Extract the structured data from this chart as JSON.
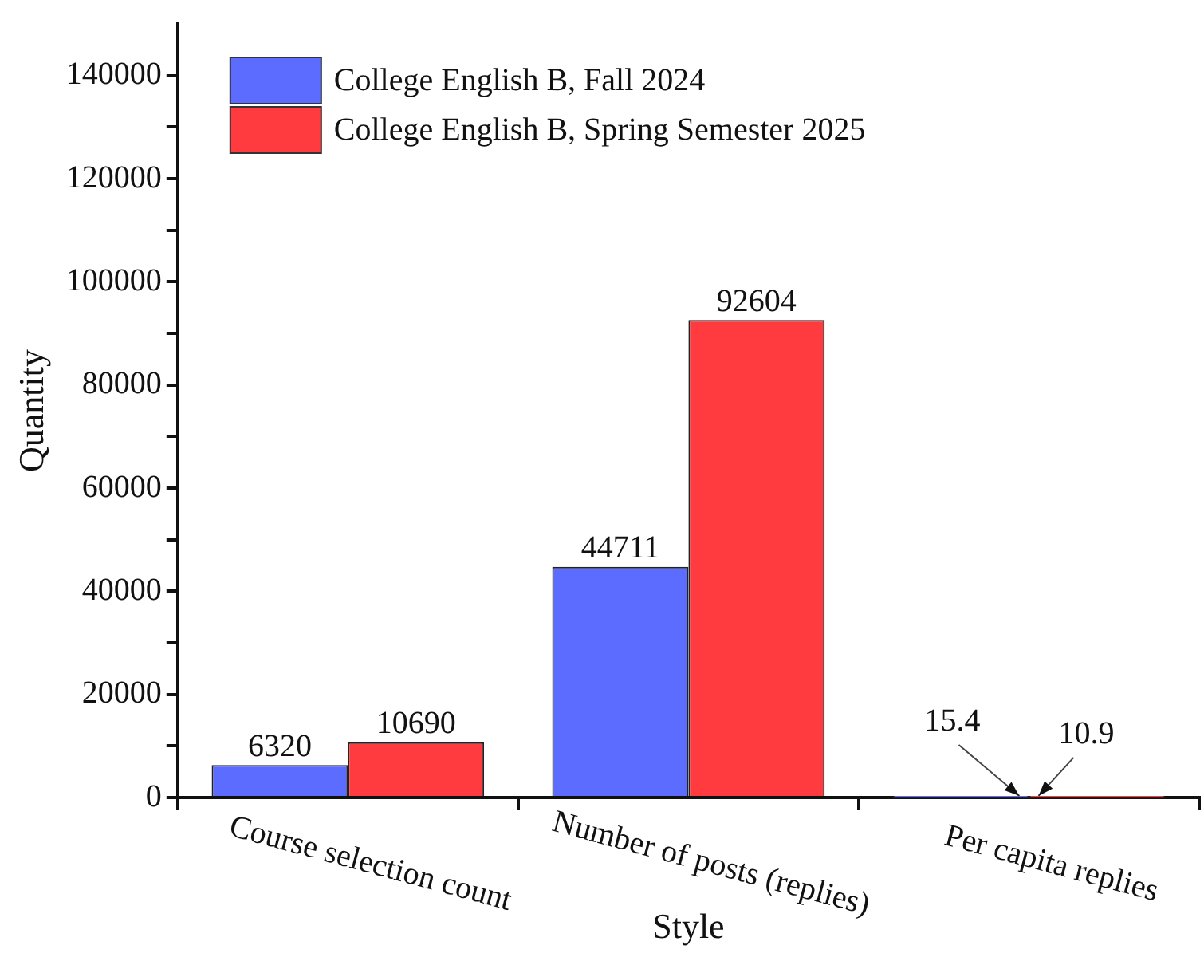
{
  "chart_data": {
    "type": "bar",
    "xlabel": "Style",
    "ylabel": "Quantity",
    "categories": [
      "Course selection count",
      "Number of posts (replies)",
      "Per capita replies"
    ],
    "series": [
      {
        "name": "College English B, Fall 2024",
        "color": "#5b6cff",
        "values": [
          6320,
          44711,
          15.4
        ]
      },
      {
        "name": "College English B, Spring Semester 2025",
        "color": "#ff3b3f",
        "values": [
          10690,
          92604,
          10.9
        ]
      }
    ],
    "ylim": [
      0,
      150000
    ],
    "yticks": [
      0,
      {
        "value": 10000,
        "label": null
      },
      20000,
      {
        "value": 30000,
        "label": null
      },
      40000,
      {
        "value": 50000,
        "label": null
      },
      60000,
      {
        "value": 70000,
        "label": null
      },
      80000,
      {
        "value": 90000,
        "label": null
      },
      100000,
      {
        "value": 110000,
        "label": null
      },
      120000,
      {
        "value": 130000,
        "label": null
      },
      140000
    ],
    "data_labels": true,
    "grid": false,
    "legend": "top left"
  }
}
